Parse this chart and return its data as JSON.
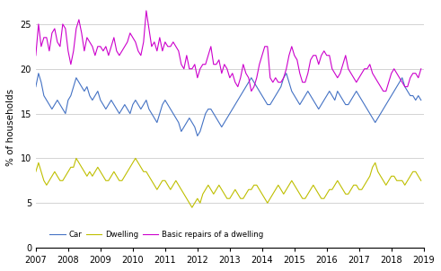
{
  "title": "",
  "ylabel": "% of households",
  "ylim": [
    0,
    27
  ],
  "yticks": [
    0,
    5,
    10,
    15,
    20,
    25
  ],
  "xlim": [
    2007.0,
    2019.0
  ],
  "xticks": [
    2007,
    2008,
    2009,
    2010,
    2011,
    2012,
    2013,
    2014,
    2015,
    2016,
    2017,
    2018,
    2019
  ],
  "car_color": "#4472c4",
  "dwelling_color": "#bfbf00",
  "repairs_color": "#cc00cc",
  "legend_labels": [
    "Car",
    "Dwelling",
    "Basic repairs of a dwelling"
  ],
  "car": [
    18.0,
    19.5,
    18.5,
    17.0,
    16.5,
    16.0,
    15.5,
    16.0,
    16.5,
    16.0,
    15.5,
    15.0,
    16.5,
    17.0,
    18.0,
    19.0,
    18.5,
    18.0,
    17.5,
    18.0,
    17.0,
    16.5,
    17.0,
    17.5,
    16.5,
    16.0,
    15.5,
    16.0,
    16.5,
    16.0,
    15.5,
    15.0,
    15.5,
    16.0,
    15.5,
    15.0,
    16.0,
    16.5,
    16.0,
    15.5,
    16.0,
    16.5,
    15.5,
    15.0,
    14.5,
    14.0,
    15.0,
    16.0,
    16.5,
    16.0,
    15.5,
    15.0,
    14.5,
    14.0,
    13.0,
    13.5,
    14.0,
    14.5,
    14.0,
    13.5,
    12.5,
    13.0,
    14.0,
    15.0,
    15.5,
    15.5,
    15.0,
    14.5,
    14.0,
    13.5,
    14.0,
    14.5,
    15.0,
    15.5,
    16.0,
    16.5,
    17.0,
    17.5,
    18.0,
    18.5,
    19.0,
    18.5,
    18.0,
    17.5,
    17.0,
    16.5,
    16.0,
    16.0,
    16.5,
    17.0,
    17.5,
    18.0,
    19.0,
    19.5,
    18.5,
    17.5,
    17.0,
    16.5,
    16.0,
    16.5,
    17.0,
    17.5,
    17.0,
    16.5,
    16.0,
    15.5,
    16.0,
    16.5,
    17.0,
    17.5,
    17.0,
    16.5,
    17.5,
    17.0,
    16.5,
    16.0,
    16.0,
    16.5,
    17.0,
    17.5,
    17.0,
    16.5,
    16.0,
    15.5,
    15.0,
    14.5,
    14.0,
    14.5,
    15.0,
    15.5,
    16.0,
    16.5,
    17.0,
    17.5,
    18.0,
    18.5,
    19.0,
    18.0,
    17.5,
    17.0,
    17.0,
    16.5,
    17.0,
    16.5
  ],
  "dwelling": [
    8.5,
    9.5,
    8.5,
    7.5,
    7.0,
    7.5,
    8.0,
    8.5,
    8.0,
    7.5,
    7.5,
    8.0,
    8.5,
    9.0,
    9.0,
    10.0,
    9.5,
    9.0,
    8.5,
    8.0,
    8.5,
    8.0,
    8.5,
    9.0,
    8.5,
    8.0,
    7.5,
    7.5,
    8.0,
    8.5,
    8.0,
    7.5,
    7.5,
    8.0,
    8.5,
    9.0,
    9.5,
    10.0,
    9.5,
    9.0,
    8.5,
    8.5,
    8.0,
    7.5,
    7.0,
    6.5,
    7.0,
    7.5,
    7.5,
    7.0,
    6.5,
    7.0,
    7.5,
    7.0,
    6.5,
    6.0,
    5.5,
    5.0,
    4.5,
    5.0,
    5.5,
    5.0,
    6.0,
    6.5,
    7.0,
    6.5,
    6.0,
    6.5,
    7.0,
    6.5,
    6.0,
    5.5,
    5.5,
    6.0,
    6.5,
    6.0,
    5.5,
    5.5,
    6.0,
    6.5,
    6.5,
    7.0,
    7.0,
    6.5,
    6.0,
    5.5,
    5.0,
    5.5,
    6.0,
    6.5,
    7.0,
    6.5,
    6.0,
    6.5,
    7.0,
    7.5,
    7.0,
    6.5,
    6.0,
    5.5,
    5.5,
    6.0,
    6.5,
    7.0,
    6.5,
    6.0,
    5.5,
    5.5,
    6.0,
    6.5,
    6.5,
    7.0,
    7.5,
    7.0,
    6.5,
    6.0,
    6.0,
    6.5,
    7.0,
    7.0,
    6.5,
    6.5,
    7.0,
    7.5,
    8.0,
    9.0,
    9.5,
    8.5,
    8.0,
    7.5,
    7.0,
    7.5,
    8.0,
    8.0,
    7.5,
    7.5,
    7.5,
    7.0,
    7.5,
    8.0,
    8.5,
    8.5,
    8.0,
    7.5
  ],
  "repairs": [
    21.5,
    25.0,
    22.5,
    23.5,
    23.5,
    22.0,
    24.0,
    24.5,
    23.0,
    22.5,
    25.0,
    24.5,
    22.0,
    20.5,
    22.0,
    24.5,
    25.5,
    24.0,
    22.0,
    23.5,
    23.0,
    22.5,
    21.5,
    22.5,
    22.5,
    22.0,
    22.5,
    21.5,
    22.5,
    23.5,
    22.0,
    21.5,
    22.0,
    22.5,
    23.0,
    24.0,
    23.5,
    23.0,
    22.0,
    21.5,
    23.0,
    26.5,
    24.5,
    22.5,
    23.0,
    22.0,
    23.5,
    22.0,
    23.0,
    22.5,
    22.5,
    23.0,
    22.5,
    22.0,
    20.5,
    20.0,
    21.5,
    20.0,
    20.0,
    20.5,
    19.0,
    20.0,
    20.5,
    20.5,
    21.5,
    22.5,
    20.5,
    20.5,
    21.0,
    19.5,
    20.5,
    20.0,
    19.0,
    19.5,
    18.5,
    18.0,
    19.0,
    20.5,
    19.5,
    19.0,
    17.5,
    18.0,
    19.0,
    20.5,
    21.5,
    22.5,
    22.5,
    19.0,
    18.5,
    19.0,
    18.5,
    18.5,
    19.0,
    20.0,
    21.5,
    22.5,
    21.5,
    21.0,
    19.5,
    18.5,
    18.5,
    19.5,
    21.0,
    21.5,
    21.5,
    20.5,
    21.5,
    22.0,
    21.5,
    21.5,
    20.0,
    19.5,
    19.0,
    19.5,
    20.5,
    21.5,
    20.0,
    19.5,
    19.0,
    18.5,
    19.0,
    19.5,
    20.0,
    20.0,
    20.5,
    19.5,
    19.0,
    18.5,
    18.0,
    17.5,
    17.5,
    18.5,
    19.5,
    20.0,
    19.5,
    19.0,
    18.5,
    18.0,
    18.0,
    19.0,
    19.5,
    19.5,
    19.0,
    20.0
  ]
}
